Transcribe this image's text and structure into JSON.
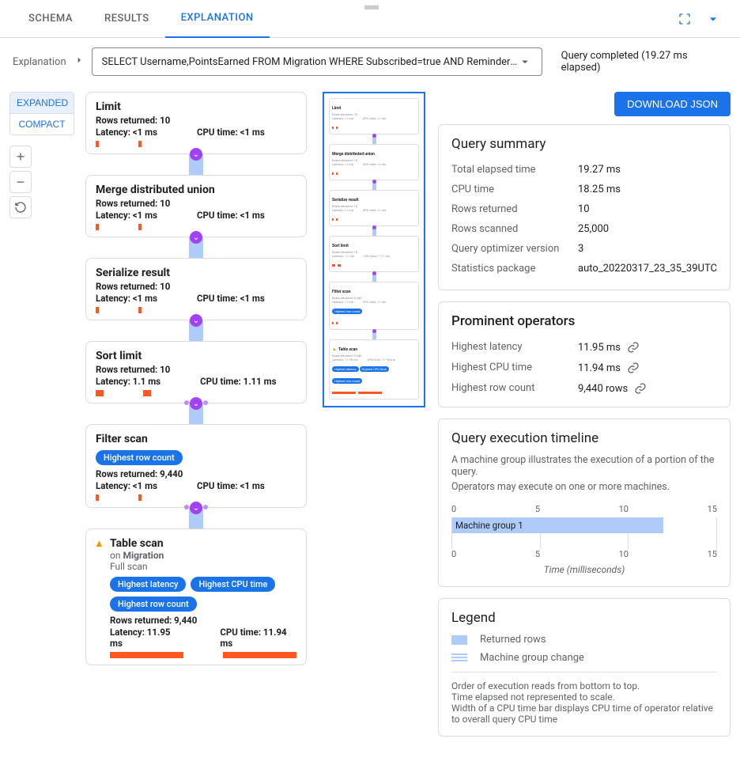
{
  "tabs": {
    "schema": "SCHEMA",
    "results": "RESULTS",
    "explanation": "EXPLANATION"
  },
  "breadcrumb_label": "Explanation",
  "query_select": "SELECT Username,PointsEarned FROM Migration WHERE Subscribed=true AND ReminderD…",
  "query_status": "Query completed (19.27 ms elapsed)",
  "view_toggle": {
    "expanded": "EXPANDED",
    "compact": "COMPACT"
  },
  "download_button": "DOWNLOAD JSON",
  "nodes": [
    {
      "title": "Limit",
      "rows": "Rows returned: 10",
      "latency": "Latency: <1 ms",
      "cpu": "CPU time: <1 ms",
      "latbar": "tiny",
      "cpubar": "tiny"
    },
    {
      "title": "Merge distributed union",
      "rows": "Rows returned: 10",
      "latency": "Latency: <1 ms",
      "cpu": "CPU time: <1 ms",
      "latbar": "tiny",
      "cpubar": "tiny"
    },
    {
      "title": "Serialize result",
      "rows": "Rows returned: 10",
      "latency": "Latency: <1 ms",
      "cpu": "CPU time: <1 ms",
      "latbar": "tiny",
      "cpubar": "tiny"
    },
    {
      "title": "Sort limit",
      "rows": "Rows returned: 10",
      "latency": "Latency: 1.1 ms",
      "cpu": "CPU time: 1.11 ms",
      "latbar": "small",
      "cpubar": "small"
    },
    {
      "title": "Filter scan",
      "badges": [
        "Highest row count"
      ],
      "rows": "Rows returned: 9,440",
      "latency": "Latency: <1 ms",
      "cpu": "CPU time: <1 ms",
      "latbar": "tiny",
      "cpubar": "tiny"
    },
    {
      "title": "Table scan",
      "warn": true,
      "sub": "on Migration",
      "full": "Full scan",
      "badges": [
        "Highest latency",
        "Highest CPU time",
        "Highest row count"
      ],
      "rows": "Rows returned: 9,440",
      "latency": "Latency: 11.95 ms",
      "cpu": "CPU time: 11.94 ms",
      "latbar": "big",
      "cpubar": "big"
    }
  ],
  "summary": {
    "title": "Query summary",
    "rows": [
      {
        "k": "Total elapsed time",
        "v": "19.27 ms"
      },
      {
        "k": "CPU time",
        "v": "18.25 ms"
      },
      {
        "k": "Rows returned",
        "v": "10"
      },
      {
        "k": "Rows scanned",
        "v": "25,000"
      },
      {
        "k": "Query optimizer version",
        "v": "3"
      },
      {
        "k": "Statistics package",
        "v": "auto_20220317_23_35_39UTC"
      }
    ]
  },
  "prominent": {
    "title": "Prominent operators",
    "rows": [
      {
        "k": "Highest latency",
        "v": "11.95 ms"
      },
      {
        "k": "Highest CPU time",
        "v": "11.94 ms"
      },
      {
        "k": "Highest row count",
        "v": "9,440 rows"
      }
    ]
  },
  "timeline": {
    "title": "Query execution timeline",
    "desc1": "A machine group illustrates the execution of a portion of the query.",
    "desc2": "Operators may execute on one or more machines.",
    "ticks": [
      "0",
      "5",
      "10",
      "15"
    ],
    "bar_label": "Machine group 1",
    "bar_width_pct": 80,
    "axis_label": "Time (milliseconds)",
    "bar_color": "#aecbfa"
  },
  "legend": {
    "title": "Legend",
    "returned": "Returned rows",
    "mgc": "Machine group change",
    "note1": "Order of execution reads from bottom to top.",
    "note2": "Time elapsed not represented to scale.",
    "note3": "Width of a CPU time bar displays CPU time of operator relative to overall query CPU time",
    "swatch_color": "#aecbfa"
  },
  "colors": {
    "accent": "#1a73e8",
    "bar": "#ff5722",
    "purple": "#a142f4",
    "connector": "#aecbfa"
  }
}
